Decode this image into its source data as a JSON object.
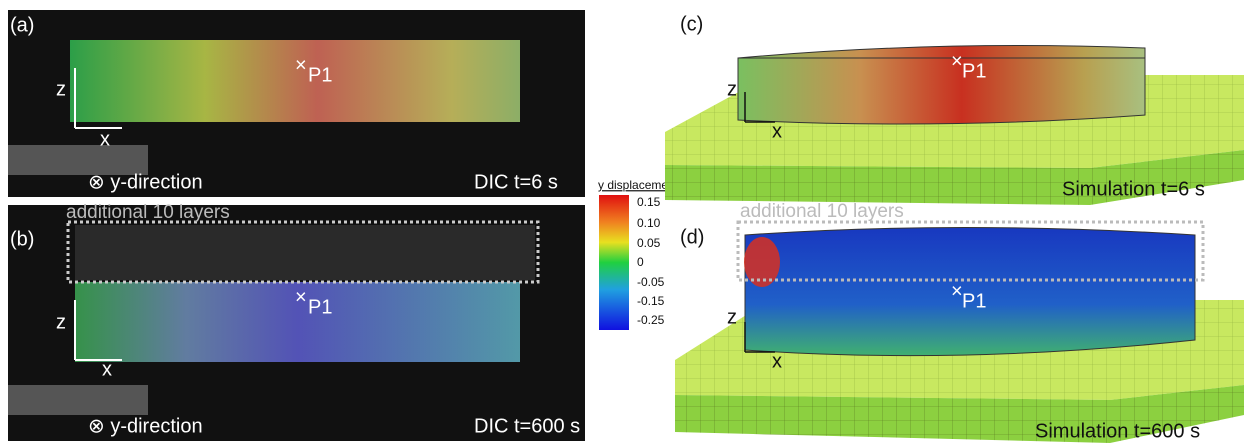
{
  "panels": [
    {
      "label": "(a)",
      "axis_z": "z",
      "axis_x": "x",
      "point": "P1",
      "direction": "⊗ y-direction",
      "caption": "DIC t=6 s"
    },
    {
      "label": "(b)",
      "axis_z": "z",
      "axis_x": "x",
      "point": "P1",
      "direction": "⊗ y-direction",
      "caption": "DIC t=600 s",
      "annotation": "additional 10 layers"
    },
    {
      "label": "(c)",
      "axis_z": "z",
      "axis_x": "x",
      "point": "P1",
      "caption": "Simulation t=6 s"
    },
    {
      "label": "(d)",
      "axis_z": "z",
      "axis_x": "x",
      "point": "P1",
      "caption": "Simulation t=600 s",
      "annotation": "additional 10 layers"
    }
  ],
  "colorbar": {
    "title": "y displacement in mm",
    "ticks": [
      "0.15",
      "0.10",
      "0.05",
      "0",
      "-0.05",
      "-0.15",
      "-0.25"
    ]
  }
}
